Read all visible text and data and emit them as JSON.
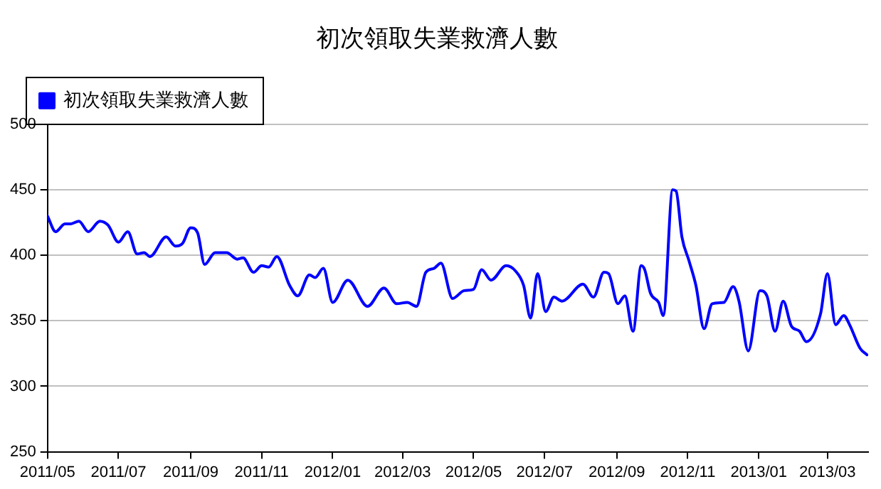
{
  "chart_data": {
    "type": "line",
    "title": "初次領取失業救濟人數",
    "x": [
      "2011-05-01",
      "2011-05-08",
      "2011-05-16",
      "2011-05-21",
      "2011-05-28",
      "2011-06-05",
      "2011-06-15",
      "2011-06-22",
      "2011-07-01",
      "2011-07-09",
      "2011-07-17",
      "2011-07-23",
      "2011-07-28",
      "2011-08-11",
      "2011-08-19",
      "2011-08-25",
      "2011-09-01",
      "2011-09-07",
      "2011-09-13",
      "2011-09-22",
      "2011-10-02",
      "2011-10-11",
      "2011-10-16",
      "2011-10-25",
      "2011-11-01",
      "2011-11-07",
      "2011-11-14",
      "2011-11-25",
      "2011-12-02",
      "2011-12-12",
      "2011-12-17",
      "2011-12-24",
      "2012-01-01",
      "2012-01-14",
      "2012-01-31",
      "2012-02-14",
      "2012-02-25",
      "2012-03-05",
      "2012-03-13",
      "2012-03-21",
      "2012-03-28",
      "2012-04-03",
      "2012-04-13",
      "2012-04-23",
      "2012-05-01",
      "2012-05-08",
      "2012-05-16",
      "2012-05-29",
      "2012-06-06",
      "2012-06-13",
      "2012-06-19",
      "2012-06-25",
      "2012-07-02",
      "2012-07-09",
      "2012-07-16",
      "2012-08-03",
      "2012-08-12",
      "2012-08-21",
      "2012-08-25",
      "2012-09-02",
      "2012-09-08",
      "2012-09-15",
      "2012-09-22",
      "2012-09-25",
      "2012-09-30",
      "2012-10-07",
      "2012-10-11",
      "2012-10-19",
      "2012-10-22",
      "2012-10-27",
      "2012-11-02",
      "2012-11-08",
      "2012-11-15",
      "2012-11-22",
      "2012-12-02",
      "2012-12-10",
      "2012-12-15",
      "2012-12-23",
      "2013-01-02",
      "2013-01-08",
      "2013-01-15",
      "2013-01-22",
      "2013-01-29",
      "2013-02-05",
      "2013-02-11",
      "2013-02-23",
      "2013-03-01",
      "2013-03-08",
      "2013-03-15",
      "2013-03-20",
      "2013-03-29",
      "2013-04-04"
    ],
    "series": [
      {
        "name": "初次領取失業救濟人數",
        "color": "#0000ff",
        "values": [
          430,
          418,
          424,
          424,
          426,
          418,
          426,
          423,
          410,
          418,
          401,
          402,
          399,
          414,
          407,
          409,
          421,
          417,
          393,
          402,
          402,
          397,
          398,
          387,
          392,
          391,
          399,
          377,
          369,
          385,
          383,
          390,
          364,
          381,
          361,
          375,
          363,
          364,
          361,
          387,
          390,
          394,
          367,
          373,
          374,
          389,
          381,
          392,
          388,
          377,
          352,
          386,
          357,
          368,
          365,
          378,
          368,
          387,
          386,
          363,
          369,
          342,
          392,
          389,
          371,
          364,
          354,
          450,
          449,
          414,
          396,
          377,
          344,
          363,
          364,
          376,
          365,
          327,
          373,
          369,
          342,
          365,
          346,
          342,
          334,
          355,
          386,
          347,
          354,
          347,
          329,
          324
        ]
      }
    ],
    "xlim": [
      "2011-05-01",
      "2013-04-05"
    ],
    "xticks": [
      {
        "value": "2011-05",
        "label": "2011/05"
      },
      {
        "value": "2011-07",
        "label": "2011/07"
      },
      {
        "value": "2011-09",
        "label": "2011/09"
      },
      {
        "value": "2011-11",
        "label": "2011/11"
      },
      {
        "value": "2012-01",
        "label": "2012/01"
      },
      {
        "value": "2012-03",
        "label": "2012/03"
      },
      {
        "value": "2012-05",
        "label": "2012/05"
      },
      {
        "value": "2012-07",
        "label": "2012/07"
      },
      {
        "value": "2012-09",
        "label": "2012/09"
      },
      {
        "value": "2012-11",
        "label": "2012/11"
      },
      {
        "value": "2013-01",
        "label": "2013/01"
      },
      {
        "value": "2013-03",
        "label": "2013/03"
      }
    ],
    "ylim": [
      250,
      500
    ],
    "yticks": [
      250,
      300,
      350,
      400,
      450,
      500
    ],
    "grid": "y",
    "legend": "top left",
    "marker": "none",
    "line_style": "solid"
  }
}
